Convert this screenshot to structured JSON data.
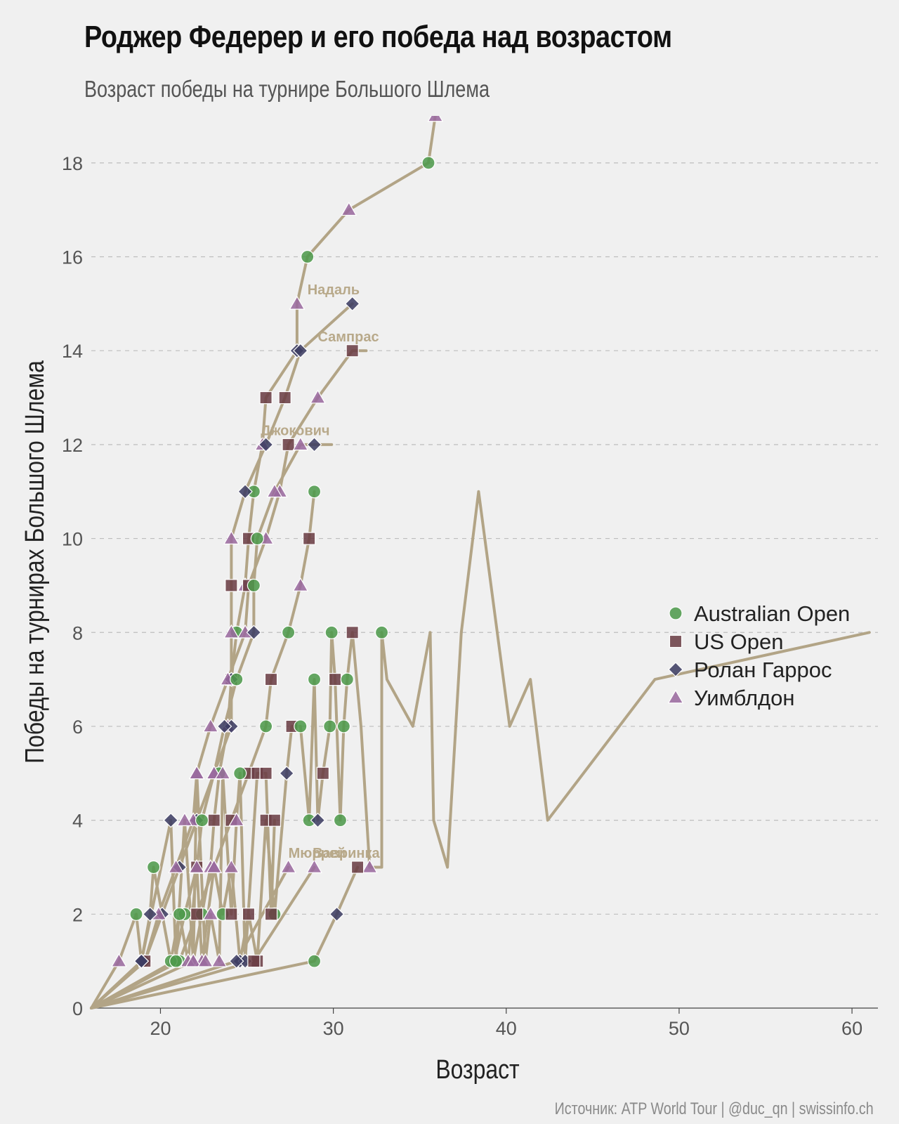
{
  "header": {
    "title": "Роджер Федерер и его победа над возрастом",
    "subtitle": "Возраст победы на турнире Большого Шлема",
    "source": "Источник: ATP World Tour | @duc_qn | swissinfo.ch"
  },
  "colors": {
    "background": "#f0f0f0",
    "line": "#b2a486",
    "grid": "#bdbdbd",
    "australian_open": "#4f9a4c",
    "us_open": "#6b3f45",
    "roland_garros": "#3e3d63",
    "wimbledon": "#9a6a9e"
  },
  "chart_data": {
    "type": "line",
    "xlabel": "Возраст",
    "ylabel": "Победы на турнирах Большого Шлема",
    "xlim": [
      16,
      61.5
    ],
    "ylim": [
      0,
      19
    ],
    "xticks": [
      20,
      30,
      40,
      50,
      60
    ],
    "yticks": [
      0,
      2,
      4,
      6,
      8,
      10,
      12,
      14,
      16,
      18
    ],
    "grid": "horizontal dashed",
    "legend_position": "right",
    "legend": [
      {
        "label": "Australian Open",
        "marker": "circle",
        "color": "#4f9a4c"
      },
      {
        "label": "US Open",
        "marker": "square",
        "color": "#6b3f45"
      },
      {
        "label": "Ролан Гаррос",
        "marker": "diamond",
        "color": "#3e3d63"
      },
      {
        "label": "Уимблдон",
        "marker": "triangle",
        "color": "#9a6a9e"
      }
    ],
    "annotations": [
      {
        "text": "Надаль",
        "x": 28.5,
        "y": 15.2
      },
      {
        "text": "Сампрас",
        "x": 29.1,
        "y": 14.2
      },
      {
        "text": "Джокович",
        "x": 25.8,
        "y": 12.2
      },
      {
        "text": "Мюррей",
        "x": 27.4,
        "y": 3.2
      },
      {
        "text": "Вавринка",
        "x": 28.8,
        "y": 3.2
      }
    ],
    "series": [
      {
        "points": [
          {
            "x": 16,
            "y": 0
          },
          {
            "x": 21.9,
            "y": 1,
            "m": "W"
          },
          {
            "x": 22.4,
            "y": 2,
            "m": "A"
          },
          {
            "x": 22.9,
            "y": 3,
            "m": "W"
          },
          {
            "x": 23.1,
            "y": 4,
            "m": "U"
          },
          {
            "x": 23.4,
            "y": 5,
            "m": "A"
          },
          {
            "x": 23.9,
            "y": 6,
            "m": "W"
          },
          {
            "x": 24.1,
            "y": 7,
            "m": "U"
          },
          {
            "x": 24.4,
            "y": 8,
            "m": "A"
          },
          {
            "x": 24.9,
            "y": 9,
            "m": "W"
          },
          {
            "x": 25.1,
            "y": 10,
            "m": "U"
          },
          {
            "x": 25.4,
            "y": 11,
            "m": "A"
          },
          {
            "x": 25.9,
            "y": 12,
            "m": "W"
          },
          {
            "x": 26.1,
            "y": 13,
            "m": "U"
          },
          {
            "x": 27.9,
            "y": 14,
            "m": "R"
          },
          {
            "x": 27.9,
            "y": 15,
            "m": "W"
          },
          {
            "x": 28.5,
            "y": 16,
            "m": "A"
          },
          {
            "x": 30.9,
            "y": 17,
            "m": "W"
          },
          {
            "x": 35.5,
            "y": 18,
            "m": "A"
          },
          {
            "x": 35.9,
            "y": 19,
            "m": "W"
          }
        ]
      },
      {
        "points": [
          {
            "x": 16,
            "y": 0
          },
          {
            "x": 19.1,
            "y": 1,
            "m": "R"
          },
          {
            "x": 20.1,
            "y": 2,
            "m": "R"
          },
          {
            "x": 21.1,
            "y": 3,
            "m": "R"
          },
          {
            "x": 22.1,
            "y": 4,
            "m": "R"
          },
          {
            "x": 23.1,
            "y": 5,
            "m": "W"
          },
          {
            "x": 24.1,
            "y": 6,
            "m": "R"
          },
          {
            "x": 24.1,
            "y": 7,
            "m": "R"
          },
          {
            "x": 24.1,
            "y": 8,
            "m": "W"
          },
          {
            "x": 24.1,
            "y": 9,
            "m": "U"
          },
          {
            "x": 24.1,
            "y": 10,
            "m": "W"
          },
          {
            "x": 24.9,
            "y": 11,
            "m": "R"
          },
          {
            "x": 26.1,
            "y": 12,
            "m": "R"
          },
          {
            "x": 27.2,
            "y": 13,
            "m": "U"
          },
          {
            "x": 28.1,
            "y": 14,
            "m": "R"
          },
          {
            "x": 31.1,
            "y": 15,
            "m": "R"
          }
        ]
      },
      {
        "points": [
          {
            "x": 16,
            "y": 0
          },
          {
            "x": 19.1,
            "y": 1,
            "m": "U"
          },
          {
            "x": 19.9,
            "y": 2,
            "m": "W"
          },
          {
            "x": 20.9,
            "y": 3,
            "m": "W"
          },
          {
            "x": 21.9,
            "y": 4,
            "m": "W"
          },
          {
            "x": 22.1,
            "y": 5,
            "m": "W"
          },
          {
            "x": 22.9,
            "y": 6,
            "m": "W"
          },
          {
            "x": 23.9,
            "y": 7,
            "m": "W"
          },
          {
            "x": 24.9,
            "y": 8,
            "m": "W"
          },
          {
            "x": 25.1,
            "y": 9,
            "m": "U"
          },
          {
            "x": 26.1,
            "y": 10,
            "m": "W"
          },
          {
            "x": 26.9,
            "y": 11,
            "m": "W"
          },
          {
            "x": 27.4,
            "y": 12,
            "m": "U"
          },
          {
            "x": 29.1,
            "y": 13,
            "m": "W"
          },
          {
            "x": 31.1,
            "y": 14,
            "m": "U"
          },
          {
            "x": 31.9,
            "y": 14
          }
        ]
      },
      {
        "points": [
          {
            "x": 16,
            "y": 0
          },
          {
            "x": 20.8,
            "y": 1,
            "m": "A"
          },
          {
            "x": 21.4,
            "y": 2,
            "m": "A"
          },
          {
            "x": 22.1,
            "y": 3,
            "m": "U"
          },
          {
            "x": 22.4,
            "y": 4,
            "m": "A"
          },
          {
            "x": 23.1,
            "y": 5,
            "m": "W"
          },
          {
            "x": 23.7,
            "y": 6,
            "m": "R"
          },
          {
            "x": 24.4,
            "y": 7,
            "m": "A"
          },
          {
            "x": 25.4,
            "y": 8,
            "m": "R"
          },
          {
            "x": 25.4,
            "y": 9,
            "m": "A"
          },
          {
            "x": 25.6,
            "y": 10,
            "m": "A"
          },
          {
            "x": 26.6,
            "y": 11,
            "m": "W"
          },
          {
            "x": 28.1,
            "y": 12,
            "m": "W"
          },
          {
            "x": 28.9,
            "y": 12,
            "m": "R"
          },
          {
            "x": 29.9,
            "y": 12
          }
        ]
      },
      {
        "points": [
          {
            "x": 16,
            "y": 0
          },
          {
            "x": 21.1,
            "y": 1,
            "m": "A"
          },
          {
            "x": 22.1,
            "y": 2,
            "m": "U"
          },
          {
            "x": 23.1,
            "y": 3,
            "m": "W"
          },
          {
            "x": 24.1,
            "y": 4,
            "m": "U"
          },
          {
            "x": 25.1,
            "y": 5,
            "m": "U"
          },
          {
            "x": 26.1,
            "y": 6,
            "m": "A"
          },
          {
            "x": 26.4,
            "y": 7,
            "m": "U"
          },
          {
            "x": 27.4,
            "y": 8,
            "m": "A"
          },
          {
            "x": 28.1,
            "y": 9,
            "m": "W"
          },
          {
            "x": 28.6,
            "y": 10,
            "m": "U"
          },
          {
            "x": 28.9,
            "y": 11,
            "m": "A"
          }
        ]
      },
      {
        "points": [
          {
            "x": 16,
            "y": 0
          },
          {
            "x": 18.9,
            "y": 1,
            "m": "R"
          },
          {
            "x": 19.4,
            "y": 2,
            "m": "R"
          },
          {
            "x": 19.6,
            "y": 3,
            "m": "A"
          },
          {
            "x": 20.6,
            "y": 1,
            "m": "A"
          },
          {
            "x": 21.1,
            "y": 2,
            "m": "A"
          },
          {
            "x": 21.6,
            "y": 1,
            "m": "W"
          },
          {
            "x": 22.1,
            "y": 3,
            "m": "W"
          },
          {
            "x": 22.4,
            "y": 1,
            "m": "W"
          },
          {
            "x": 23.1,
            "y": 3,
            "m": "W"
          },
          {
            "x": 23.6,
            "y": 2,
            "m": "A"
          },
          {
            "x": 24.1,
            "y": 3,
            "m": "W"
          },
          {
            "x": 24.6,
            "y": 1,
            "m": "R"
          },
          {
            "x": 25.1,
            "y": 2,
            "m": "U"
          },
          {
            "x": 25.6,
            "y": 1,
            "m": "U"
          },
          {
            "x": 26.1,
            "y": 4,
            "m": "U"
          },
          {
            "x": 26.6,
            "y": 2,
            "m": "A"
          },
          {
            "x": 27.3,
            "y": 5,
            "m": "R"
          },
          {
            "x": 27.6,
            "y": 6,
            "m": "U"
          },
          {
            "x": 28.1,
            "y": 6,
            "m": "A"
          },
          {
            "x": 28.6,
            "y": 4,
            "m": "A"
          },
          {
            "x": 28.9,
            "y": 7,
            "m": "A"
          },
          {
            "x": 29.1,
            "y": 4,
            "m": "R"
          },
          {
            "x": 29.4,
            "y": 5,
            "m": "U"
          },
          {
            "x": 29.8,
            "y": 6,
            "m": "A"
          },
          {
            "x": 29.9,
            "y": 8,
            "m": "A"
          },
          {
            "x": 30.1,
            "y": 7,
            "m": "U"
          },
          {
            "x": 30.4,
            "y": 4,
            "m": "A"
          },
          {
            "x": 30.6,
            "y": 6,
            "m": "A"
          },
          {
            "x": 30.8,
            "y": 7,
            "m": "A"
          },
          {
            "x": 31.1,
            "y": 8,
            "m": "U"
          },
          {
            "x": 31.6,
            "y": 6
          },
          {
            "x": 32.1,
            "y": 3,
            "m": "W"
          },
          {
            "x": 32.8,
            "y": 3
          },
          {
            "x": 32.8,
            "y": 8,
            "m": "A"
          },
          {
            "x": 33.1,
            "y": 7
          },
          {
            "x": 34.6,
            "y": 6
          },
          {
            "x": 35.6,
            "y": 8
          },
          {
            "x": 35.8,
            "y": 4
          },
          {
            "x": 36.6,
            "y": 3
          },
          {
            "x": 37.4,
            "y": 8
          },
          {
            "x": 38.4,
            "y": 11
          },
          {
            "x": 40.2,
            "y": 6
          },
          {
            "x": 41.4,
            "y": 7
          },
          {
            "x": 42.4,
            "y": 4
          },
          {
            "x": 48.6,
            "y": 7
          },
          {
            "x": 61,
            "y": 8
          }
        ]
      },
      {
        "points": [
          {
            "x": 16,
            "y": 0
          },
          {
            "x": 17.6,
            "y": 1,
            "m": "W"
          },
          {
            "x": 18.6,
            "y": 2,
            "m": "A"
          },
          {
            "x": 18.9,
            "y": 1,
            "m": "R"
          },
          {
            "x": 20.6,
            "y": 4,
            "m": "R"
          },
          {
            "x": 20.9,
            "y": 1,
            "m": "A"
          },
          {
            "x": 21.4,
            "y": 4,
            "m": "W"
          },
          {
            "x": 21.9,
            "y": 1,
            "m": "W"
          },
          {
            "x": 22.1,
            "y": 5,
            "m": "W"
          },
          {
            "x": 22.6,
            "y": 1,
            "m": "W"
          },
          {
            "x": 22.9,
            "y": 2,
            "m": "W"
          },
          {
            "x": 23.4,
            "y": 1,
            "m": "W"
          },
          {
            "x": 23.6,
            "y": 5,
            "m": "W"
          },
          {
            "x": 24.1,
            "y": 2,
            "m": "U"
          },
          {
            "x": 24.4,
            "y": 4,
            "m": "W"
          },
          {
            "x": 24.6,
            "y": 5,
            "m": "A"
          },
          {
            "x": 24.9,
            "y": 1,
            "m": "R"
          },
          {
            "x": 25.6,
            "y": 5,
            "m": "U"
          },
          {
            "x": 26.1,
            "y": 5,
            "m": "U"
          },
          {
            "x": 26.4,
            "y": 2,
            "m": "U"
          },
          {
            "x": 26.6,
            "y": 4,
            "m": "U"
          }
        ]
      },
      {
        "points": [
          {
            "x": 16,
            "y": 0
          },
          {
            "x": 24.4,
            "y": 1,
            "m": "R"
          },
          {
            "x": 27.4,
            "y": 3,
            "m": "W"
          }
        ]
      },
      {
        "points": [
          {
            "x": 16,
            "y": 0
          },
          {
            "x": 28.9,
            "y": 1,
            "m": "A"
          },
          {
            "x": 30.2,
            "y": 2,
            "m": "R"
          },
          {
            "x": 31.4,
            "y": 3,
            "m": "U"
          }
        ]
      },
      {
        "points": [
          {
            "x": 16,
            "y": 0
          },
          {
            "x": 25.4,
            "y": 1,
            "m": "U"
          },
          {
            "x": 28.9,
            "y": 3,
            "m": "W"
          }
        ]
      }
    ]
  }
}
